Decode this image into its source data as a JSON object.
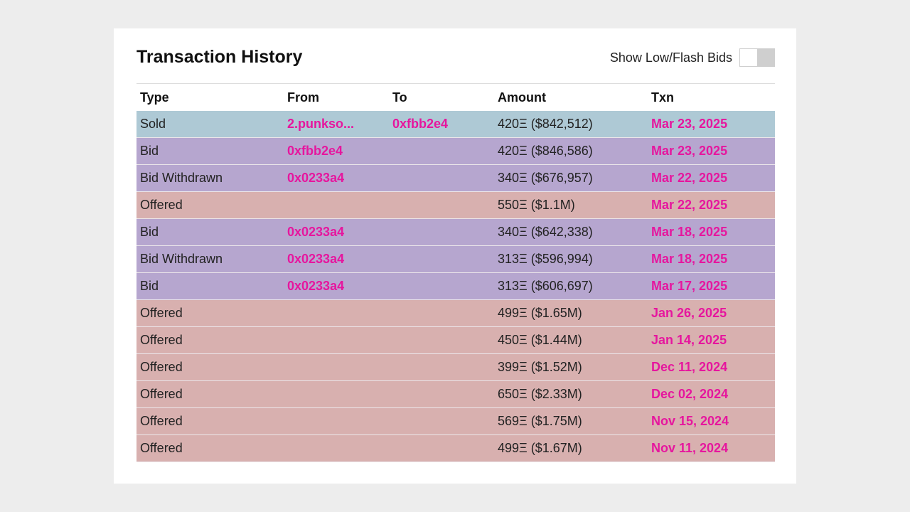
{
  "header": {
    "title": "Transaction History",
    "toggle_label": "Show Low/Flash Bids"
  },
  "colors": {
    "sold_row": "#aec9d5",
    "bid_row": "#b6a6cf",
    "offered_row": "#d8b0af",
    "link": "#e6169e"
  },
  "table": {
    "columns": [
      "Type",
      "From",
      "To",
      "Amount",
      "Txn"
    ],
    "rows": [
      {
        "type": "Sold",
        "from": "2.punkso...",
        "to": "0xfbb2e4",
        "amount": "420Ξ ($842,512)",
        "txn": "Mar 23, 2025",
        "kind": "sold"
      },
      {
        "type": "Bid",
        "from": "0xfbb2e4",
        "to": "",
        "amount": "420Ξ ($846,586)",
        "txn": "Mar 23, 2025",
        "kind": "bid"
      },
      {
        "type": "Bid Withdrawn",
        "from": "0x0233a4",
        "to": "",
        "amount": "340Ξ ($676,957)",
        "txn": "Mar 22, 2025",
        "kind": "bid"
      },
      {
        "type": "Offered",
        "from": "",
        "to": "",
        "amount": "550Ξ ($1.1M)",
        "txn": "Mar 22, 2025",
        "kind": "offered"
      },
      {
        "type": "Bid",
        "from": "0x0233a4",
        "to": "",
        "amount": "340Ξ ($642,338)",
        "txn": "Mar 18, 2025",
        "kind": "bid"
      },
      {
        "type": "Bid Withdrawn",
        "from": "0x0233a4",
        "to": "",
        "amount": "313Ξ ($596,994)",
        "txn": "Mar 18, 2025",
        "kind": "bid"
      },
      {
        "type": "Bid",
        "from": "0x0233a4",
        "to": "",
        "amount": "313Ξ ($606,697)",
        "txn": "Mar 17, 2025",
        "kind": "bid"
      },
      {
        "type": "Offered",
        "from": "",
        "to": "",
        "amount": "499Ξ ($1.65M)",
        "txn": "Jan 26, 2025",
        "kind": "offered"
      },
      {
        "type": "Offered",
        "from": "",
        "to": "",
        "amount": "450Ξ ($1.44M)",
        "txn": "Jan 14, 2025",
        "kind": "offered"
      },
      {
        "type": "Offered",
        "from": "",
        "to": "",
        "amount": "399Ξ ($1.52M)",
        "txn": "Dec 11, 2024",
        "kind": "offered"
      },
      {
        "type": "Offered",
        "from": "",
        "to": "",
        "amount": "650Ξ ($2.33M)",
        "txn": "Dec 02, 2024",
        "kind": "offered"
      },
      {
        "type": "Offered",
        "from": "",
        "to": "",
        "amount": "569Ξ ($1.75M)",
        "txn": "Nov 15, 2024",
        "kind": "offered"
      },
      {
        "type": "Offered",
        "from": "",
        "to": "",
        "amount": "499Ξ ($1.67M)",
        "txn": "Nov 11, 2024",
        "kind": "offered"
      }
    ]
  }
}
